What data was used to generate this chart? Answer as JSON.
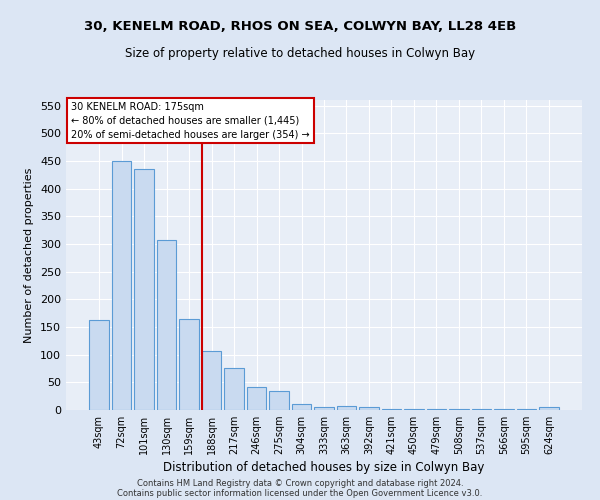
{
  "title": "30, KENELM ROAD, RHOS ON SEA, COLWYN BAY, LL28 4EB",
  "subtitle": "Size of property relative to detached houses in Colwyn Bay",
  "xlabel": "Distribution of detached houses by size in Colwyn Bay",
  "ylabel": "Number of detached properties",
  "categories": [
    "43sqm",
    "72sqm",
    "101sqm",
    "130sqm",
    "159sqm",
    "188sqm",
    "217sqm",
    "246sqm",
    "275sqm",
    "304sqm",
    "333sqm",
    "363sqm",
    "392sqm",
    "421sqm",
    "450sqm",
    "479sqm",
    "508sqm",
    "537sqm",
    "566sqm",
    "595sqm",
    "624sqm"
  ],
  "values": [
    163,
    450,
    435,
    307,
    165,
    106,
    75,
    42,
    35,
    10,
    5,
    8,
    5,
    2,
    2,
    1,
    1,
    1,
    1,
    1,
    5
  ],
  "bar_color": "#c9daf0",
  "bar_edge_color": "#5b9bd5",
  "ref_line_label": "30 KENELM ROAD: 175sqm",
  "annotation_line1": "← 80% of detached houses are smaller (1,445)",
  "annotation_line2": "20% of semi-detached houses are larger (354) →",
  "annotation_box_color": "#ffffff",
  "annotation_box_edge": "#cc0000",
  "ref_line_color": "#cc0000",
  "ylim": [
    0,
    560
  ],
  "yticks": [
    0,
    50,
    100,
    150,
    200,
    250,
    300,
    350,
    400,
    450,
    500,
    550
  ],
  "footer1": "Contains HM Land Registry data © Crown copyright and database right 2024.",
  "footer2": "Contains public sector information licensed under the Open Government Licence v3.0.",
  "bg_color": "#dce6f4",
  "plot_bg_color": "#e8eef7"
}
